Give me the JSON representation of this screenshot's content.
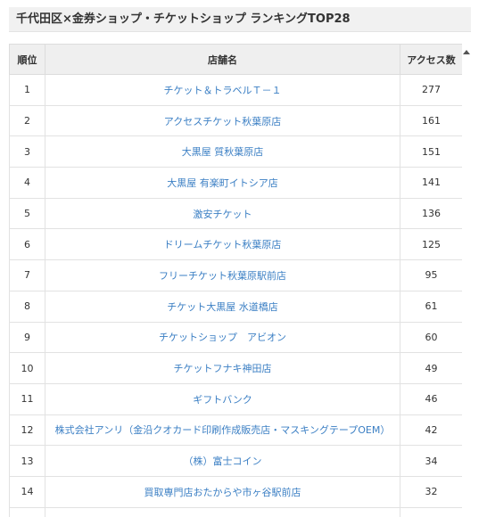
{
  "title": "千代田区×金券ショップ・チケットショップ ランキングTOP28",
  "table": {
    "headers": [
      "順位",
      "店舗名",
      "アクセス数"
    ],
    "rows": [
      {
        "rank": "1",
        "name": "チケット＆トラベルＴ－１",
        "access": "277"
      },
      {
        "rank": "2",
        "name": "アクセスチケット秋葉原店",
        "access": "161"
      },
      {
        "rank": "3",
        "name": "大黒屋 質秋葉原店",
        "access": "151"
      },
      {
        "rank": "4",
        "name": "大黒屋 有楽町イトシア店",
        "access": "141"
      },
      {
        "rank": "5",
        "name": "激安チケット",
        "access": "136"
      },
      {
        "rank": "6",
        "name": "ドリームチケット秋葉原店",
        "access": "125"
      },
      {
        "rank": "7",
        "name": "フリーチケット秋葉原駅前店",
        "access": "95"
      },
      {
        "rank": "8",
        "name": "チケット大黒屋 水道橋店",
        "access": "61"
      },
      {
        "rank": "9",
        "name": "チケットショップ　アビオン",
        "access": "60"
      },
      {
        "rank": "10",
        "name": "チケットフナキ神田店",
        "access": "49"
      },
      {
        "rank": "11",
        "name": "ギフトバンク",
        "access": "46"
      },
      {
        "rank": "12",
        "name": "株式会社アンリ（金沿クオカード印刷作成販売店・マスキングテープOEM）",
        "access": "42"
      },
      {
        "rank": "13",
        "name": "（株）富士コイン",
        "access": "34"
      },
      {
        "rank": "14",
        "name": "買取専門店おたからや市ヶ谷駅前店",
        "access": "32"
      },
      {
        "rank": "",
        "name": "",
        "access": ""
      }
    ]
  }
}
